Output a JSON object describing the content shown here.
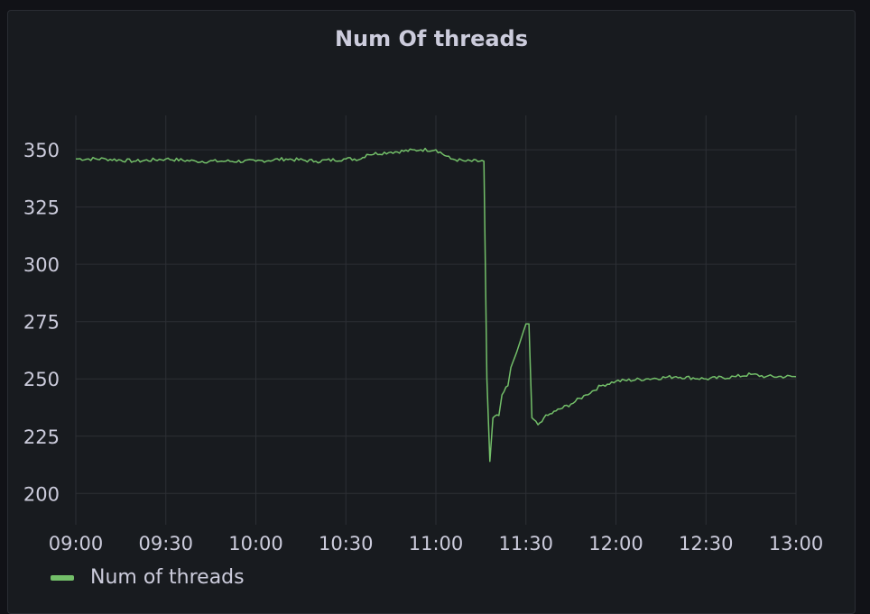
{
  "panel": {
    "title": "Num Of threads"
  },
  "colors": {
    "background": "#181b1f",
    "grid": "#2c2f35",
    "text": "#ccccdc",
    "series": "#73bf69"
  },
  "chart_data": {
    "type": "line",
    "title": "Num Of threads",
    "xlabel": "",
    "ylabel": "",
    "x_ticks": [
      "09:00",
      "09:30",
      "10:00",
      "10:30",
      "11:00",
      "11:30",
      "12:00",
      "12:30",
      "13:00"
    ],
    "y_ticks": [
      200,
      225,
      250,
      275,
      300,
      325,
      350
    ],
    "xlim": [
      "09:00",
      "13:00"
    ],
    "ylim": [
      195,
      365
    ],
    "grid": true,
    "legend_position": "bottom-left",
    "series": [
      {
        "name": "Num of threads",
        "points": [
          [
            "09:00",
            346
          ],
          [
            "09:10",
            346
          ],
          [
            "09:20",
            345
          ],
          [
            "09:30",
            346
          ],
          [
            "09:40",
            345
          ],
          [
            "09:50",
            345
          ],
          [
            "10:00",
            345
          ],
          [
            "10:10",
            346
          ],
          [
            "10:20",
            345
          ],
          [
            "10:30",
            346
          ],
          [
            "10:35",
            346
          ],
          [
            "10:37",
            348
          ],
          [
            "10:45",
            349
          ],
          [
            "10:55",
            350
          ],
          [
            "11:00",
            350
          ],
          [
            "11:05",
            346
          ],
          [
            "11:10",
            345
          ],
          [
            "11:16",
            345
          ],
          [
            "11:17",
            250
          ],
          [
            "11:18",
            214
          ],
          [
            "11:19",
            233
          ],
          [
            "11:21",
            234
          ],
          [
            "11:22",
            243
          ],
          [
            "11:24",
            247
          ],
          [
            "11:25",
            255
          ],
          [
            "11:27",
            262
          ],
          [
            "11:28",
            266
          ],
          [
            "11:30",
            274
          ],
          [
            "11:31",
            274
          ],
          [
            "11:32",
            233
          ],
          [
            "11:34",
            230
          ],
          [
            "11:36",
            233
          ],
          [
            "11:40",
            236
          ],
          [
            "11:45",
            239
          ],
          [
            "11:50",
            243
          ],
          [
            "11:55",
            247
          ],
          [
            "12:00",
            249
          ],
          [
            "12:10",
            250
          ],
          [
            "12:20",
            251
          ],
          [
            "12:30",
            250
          ],
          [
            "12:40",
            251
          ],
          [
            "12:45",
            252
          ],
          [
            "12:50",
            251
          ],
          [
            "13:00",
            251
          ]
        ]
      }
    ]
  }
}
